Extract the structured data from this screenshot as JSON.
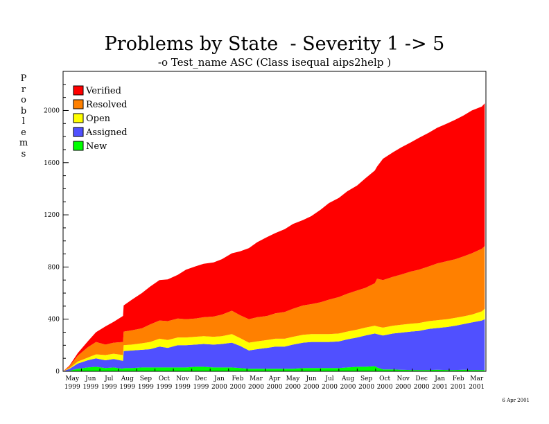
{
  "title": "Problems by State  - Severity 1 -> 5",
  "subtitle": "-o Test_name ASC (Class isequal aips2help )",
  "footer_date": "6 Apr 2001",
  "chart_data": {
    "type": "area",
    "stacked": true,
    "title": "Problems by State  - Severity 1 -> 5",
    "subtitle": "-o Test_name ASC (Class isequal aips2help )",
    "ylabel": "Problems",
    "xlabel": "",
    "ylim": [
      0,
      2300
    ],
    "yticks": [
      0,
      400,
      800,
      1200,
      1600,
      2000
    ],
    "legend_position": "top-left",
    "x_months": [
      {
        "month": "May",
        "year": "1999"
      },
      {
        "month": "Jun",
        "year": "1999"
      },
      {
        "month": "Jul",
        "year": "1999"
      },
      {
        "month": "Aug",
        "year": "1999"
      },
      {
        "month": "Sep",
        "year": "1999"
      },
      {
        "month": "Oct",
        "year": "1999"
      },
      {
        "month": "Nov",
        "year": "1999"
      },
      {
        "month": "Dec",
        "year": "1999"
      },
      {
        "month": "Jan",
        "year": "2000"
      },
      {
        "month": "Feb",
        "year": "2000"
      },
      {
        "month": "Mar",
        "year": "2000"
      },
      {
        "month": "Apr",
        "year": "2000"
      },
      {
        "month": "May",
        "year": "2000"
      },
      {
        "month": "Jun",
        "year": "2000"
      },
      {
        "month": "Jul",
        "year": "2000"
      },
      {
        "month": "Aug",
        "year": "2000"
      },
      {
        "month": "Sep",
        "year": "2000"
      },
      {
        "month": "Oct",
        "year": "2000"
      },
      {
        "month": "Nov",
        "year": "2000"
      },
      {
        "month": "Dec",
        "year": "2000"
      },
      {
        "month": "Jan",
        "year": "2001"
      },
      {
        "month": "Feb",
        "year": "2001"
      },
      {
        "month": "Mar",
        "year": "2001"
      }
    ],
    "x": [
      "1999-04-20",
      "1999-05-01",
      "1999-05-15",
      "1999-06-01",
      "1999-06-15",
      "1999-07-01",
      "1999-07-15",
      "1999-07-31",
      "1999-08-01",
      "1999-08-15",
      "1999-09-01",
      "1999-09-15",
      "1999-10-01",
      "1999-10-15",
      "1999-11-01",
      "1999-11-15",
      "1999-12-01",
      "1999-12-15",
      "2000-01-01",
      "2000-01-15",
      "2000-02-01",
      "2000-02-15",
      "2000-03-01",
      "2000-03-15",
      "2000-04-01",
      "2000-04-15",
      "2000-05-01",
      "2000-05-15",
      "2000-06-01",
      "2000-06-15",
      "2000-07-01",
      "2000-07-15",
      "2000-08-01",
      "2000-08-15",
      "2000-09-01",
      "2000-09-15",
      "2000-10-01",
      "2000-10-05",
      "2000-10-15",
      "2000-11-01",
      "2000-11-15",
      "2000-12-01",
      "2000-12-15",
      "2001-01-01",
      "2001-01-15",
      "2001-02-01",
      "2001-02-15",
      "2001-03-01",
      "2001-03-15",
      "2001-04-01",
      "2001-04-06"
    ],
    "series": [
      {
        "name": "New",
        "color": "#00ff00",
        "values": [
          0,
          5,
          20,
          30,
          35,
          25,
          30,
          20,
          25,
          25,
          30,
          30,
          30,
          30,
          30,
          30,
          35,
          35,
          30,
          30,
          30,
          25,
          20,
          20,
          20,
          20,
          20,
          20,
          25,
          25,
          25,
          25,
          25,
          30,
          35,
          35,
          40,
          30,
          15,
          15,
          12,
          10,
          10,
          10,
          12,
          10,
          10,
          12,
          10,
          10,
          10
        ]
      },
      {
        "name": "Assigned",
        "color": "#5050ff",
        "values": [
          0,
          15,
          40,
          55,
          65,
          60,
          65,
          60,
          130,
          135,
          135,
          140,
          160,
          150,
          170,
          170,
          170,
          175,
          175,
          180,
          190,
          170,
          140,
          150,
          160,
          170,
          170,
          185,
          195,
          200,
          200,
          200,
          205,
          215,
          225,
          240,
          250,
          255,
          260,
          275,
          285,
          295,
          300,
          315,
          320,
          330,
          340,
          350,
          365,
          380,
          390
        ]
      },
      {
        "name": "Open",
        "color": "#ffff00",
        "values": [
          0,
          5,
          15,
          20,
          30,
          40,
          40,
          45,
          45,
          45,
          50,
          55,
          60,
          60,
          60,
          60,
          60,
          60,
          60,
          60,
          65,
          60,
          60,
          60,
          60,
          60,
          60,
          60,
          60,
          60,
          60,
          60,
          60,
          60,
          60,
          60,
          60,
          60,
          60,
          60,
          60,
          60,
          60,
          60,
          60,
          60,
          60,
          60,
          60,
          70,
          80
        ]
      },
      {
        "name": "Resolved",
        "color": "#ff8000",
        "values": [
          0,
          15,
          45,
          80,
          95,
          80,
          85,
          100,
          105,
          110,
          115,
          135,
          140,
          145,
          145,
          140,
          140,
          145,
          155,
          165,
          180,
          175,
          180,
          185,
          185,
          195,
          205,
          215,
          225,
          230,
          245,
          265,
          280,
          290,
          300,
          305,
          325,
          365,
          365,
          375,
          385,
          400,
          410,
          420,
          435,
          445,
          450,
          460,
          470,
          480,
          480
        ]
      },
      {
        "name": "Verified",
        "color": "#ff0000",
        "values": [
          0,
          5,
          20,
          45,
          75,
          140,
          160,
          200,
          200,
          235,
          270,
          290,
          310,
          320,
          335,
          380,
          400,
          410,
          415,
          425,
          440,
          490,
          545,
          575,
          605,
          615,
          635,
          650,
          655,
          675,
          710,
          740,
          760,
          785,
          805,
          840,
          865,
          860,
          930,
          955,
          975,
          990,
          1010,
          1025,
          1040,
          1055,
          1070,
          1080,
          1095,
          1090,
          1095
        ]
      }
    ]
  }
}
